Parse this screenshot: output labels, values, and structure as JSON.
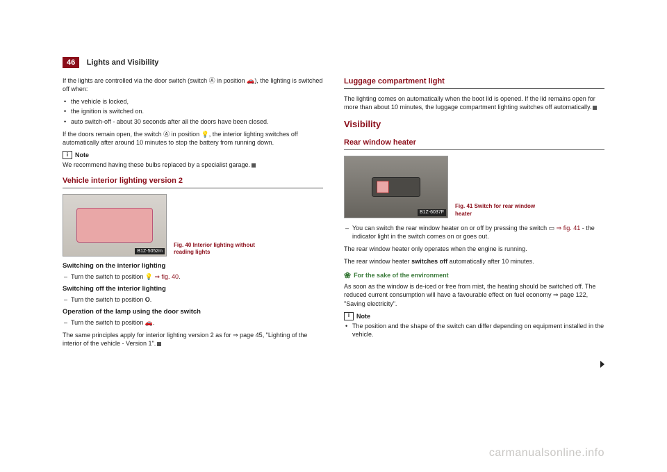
{
  "header": {
    "page_number": "46",
    "section": "Lights and Visibility"
  },
  "left": {
    "intro": "If the lights are controlled via the door switch (switch Ⓐ in position 🚗), the lighting is switched off when:",
    "bullets": [
      "the vehicle is locked,",
      "the ignition is switched on.",
      "auto switch-off - about 30 seconds after all the doors have been closed."
    ],
    "para2": "If the doors remain open, the switch Ⓐ in position 💡, the interior lighting switches off automatically after around 10 minutes to stop the battery from running down.",
    "note_label": "Note",
    "note_text": "We recommend having these bulbs replaced by a specialist garage.",
    "h2a": "Vehicle interior lighting version 2",
    "fig40_tag": "B1Z-5052m",
    "fig40_cap": "Fig. 40  Interior lighting without reading lights",
    "sub1": "Switching on the interior lighting",
    "sub1_item": "Turn the switch to position 💡 ",
    "sub1_link": "⇒ fig. 40",
    "sub1_end": ".",
    "sub2": "Switching off the interior lighting",
    "sub2_item_a": "Turn the switch to position ",
    "sub2_item_b": "O",
    "sub2_item_c": ".",
    "sub3": "Operation of the lamp using the door switch",
    "sub3_item": "Turn the switch to position 🚗.",
    "final": "The same principles apply for interior lighting version 2 as for ⇒ page 45, \"Lighting of the interior of the vehicle - Version 1\"."
  },
  "right": {
    "h2b": "Luggage compartment light",
    "lug_text": "The lighting comes on automatically when the boot lid is opened. If the lid remains open for more than about 10 minutes, the luggage compartment lighting switches off automatically.",
    "h1v": "Visibility",
    "h2c": "Rear window heater",
    "fig41_tag": "B1Z-6037F",
    "fig41_cap": "Fig. 41  Switch for rear window heater",
    "dash1a": "You can switch the rear window heater on or off by pressing the switch ▭ ",
    "dash1b": "⇒ fig. 41",
    "dash1c": " - the indicator light in the switch comes on or goes out.",
    "p1": "The rear window heater only operates when the engine is running.",
    "p2a": "The rear window heater ",
    "p2b": "switches off",
    "p2c": " automatically after 10 minutes.",
    "env_label": "For the sake of the environment",
    "env_text": "As soon as the window is de-iced or free from mist, the heating should be switched off. The reduced current consumption will have a favourable effect on fuel economy ⇒ page 122, \"Saving electricity\".",
    "note2_label": "Note",
    "note2_text": "The position and the shape of the switch can differ depending on equipment installed in the vehicle."
  },
  "watermark": "carmanualsonline.info"
}
